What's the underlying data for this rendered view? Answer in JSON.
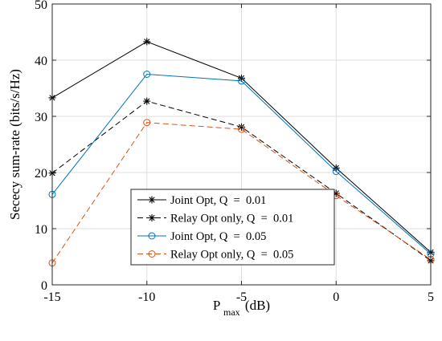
{
  "chart_data": {
    "type": "line",
    "title": "",
    "xlabel": {
      "main": "P",
      "subscript": "max",
      "unit": "(dB)"
    },
    "ylabel": "Sececy sum-rate (bits/s/Hz)",
    "x": [
      -15,
      -10,
      -5,
      0,
      5
    ],
    "xlim": [
      -15,
      5
    ],
    "ylim": [
      0,
      50
    ],
    "xticks": [
      -15,
      -10,
      -5,
      0,
      5
    ],
    "xtick_labels": [
      "-15",
      "-10",
      "-5",
      "0",
      "5"
    ],
    "yticks": [
      0,
      10,
      20,
      30,
      40,
      50
    ],
    "ytick_labels": [
      "0",
      "10",
      "20",
      "30",
      "40",
      "50"
    ],
    "grid": true,
    "legend_position": "lower-center",
    "series": [
      {
        "name": "Joint Opt, Q  =  0.01",
        "values": [
          33.3,
          43.3,
          36.8,
          20.8,
          5.8
        ],
        "color": "#000000",
        "line": "solid",
        "marker": "asterisk"
      },
      {
        "name": "Relay Opt only, Q  =  0.01",
        "values": [
          19.9,
          32.7,
          28.1,
          16.3,
          4.3
        ],
        "color": "#000000",
        "line": "dashed",
        "marker": "asterisk"
      },
      {
        "name": "Joint Opt, Q  =  0.05",
        "values": [
          16.1,
          37.5,
          36.3,
          20.2,
          5.5
        ],
        "color": "#0072bd",
        "line": "solid",
        "marker": "circle"
      },
      {
        "name": "Relay Opt only, Q  =  0.05",
        "values": [
          3.9,
          28.9,
          27.7,
          15.9,
          4.5
        ],
        "color": "#d95319",
        "line": "dashed",
        "marker": "circle"
      }
    ]
  }
}
